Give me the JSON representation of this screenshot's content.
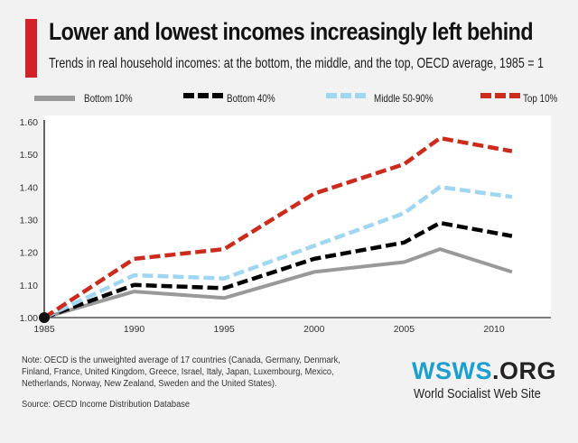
{
  "header": {
    "title": "Lower and lowest incomes increasingly left behind",
    "subtitle": "Trends in real household incomes: at the bottom, the middle, and the top, OECD average, 1985 = 1",
    "accent_color": "#d42027"
  },
  "legend": [
    {
      "label": "Bottom 10%",
      "color": "#999999",
      "style": "solid"
    },
    {
      "label": "Bottom 40%",
      "color": "#000000",
      "style": "dashed"
    },
    {
      "label": "Middle 50-90%",
      "color": "#9fd6f2",
      "style": "dashed"
    },
    {
      "label": "Top 10%",
      "color": "#cc2a1a",
      "style": "dashed"
    }
  ],
  "chart_data": {
    "type": "line",
    "title": "Lower and lowest incomes increasingly left behind",
    "subtitle": "Trends in real household incomes: at the bottom, the middle, and the top, OECD average, 1985 = 1",
    "xlabel": "",
    "ylabel": "",
    "x_ticks": [
      "1985",
      "1990",
      "1995",
      "2000",
      "2005",
      "2010"
    ],
    "y_ticks": [
      "1.00",
      "1.10",
      "1.20",
      "1.30",
      "1.40",
      "1.50",
      "1.60"
    ],
    "xlim": [
      1985,
      2013
    ],
    "ylim": [
      1.0,
      1.6
    ],
    "grid": false,
    "legend_position": "top",
    "x": [
      1985,
      1990,
      1995,
      2000,
      2005,
      2007,
      2011
    ],
    "series": [
      {
        "name": "Bottom 10%",
        "color": "#999999",
        "style": "solid",
        "values": [
          1.0,
          1.08,
          1.06,
          1.14,
          1.17,
          1.21,
          1.14
        ]
      },
      {
        "name": "Bottom 40%",
        "color": "#000000",
        "style": "dashed",
        "values": [
          1.0,
          1.1,
          1.09,
          1.18,
          1.23,
          1.29,
          1.25
        ]
      },
      {
        "name": "Middle 50-90%",
        "color": "#9fd6f2",
        "style": "dashed",
        "values": [
          1.0,
          1.13,
          1.12,
          1.22,
          1.32,
          1.4,
          1.37
        ]
      },
      {
        "name": "Top 10%",
        "color": "#cc2a1a",
        "style": "dashed",
        "values": [
          1.0,
          1.18,
          1.21,
          1.38,
          1.47,
          1.55,
          1.51
        ]
      }
    ]
  },
  "footer": {
    "note": "Note: OECD is the unweighted average of 17 countries (Canada, Germany, Denmark, Finland, France, United Kingdom, Greece, Israel, Italy, Japan, Luxembourg, Mexico, Netherlands, Norway, New Zealand, Sweden and the United States).",
    "source": "Source:  OECD Income Distribution Database"
  },
  "logo": {
    "brand_main": "WSWS",
    "brand_suffix": ".ORG",
    "tagline": "World Socialist Web Site",
    "brand_color": "#1b9fd0"
  }
}
